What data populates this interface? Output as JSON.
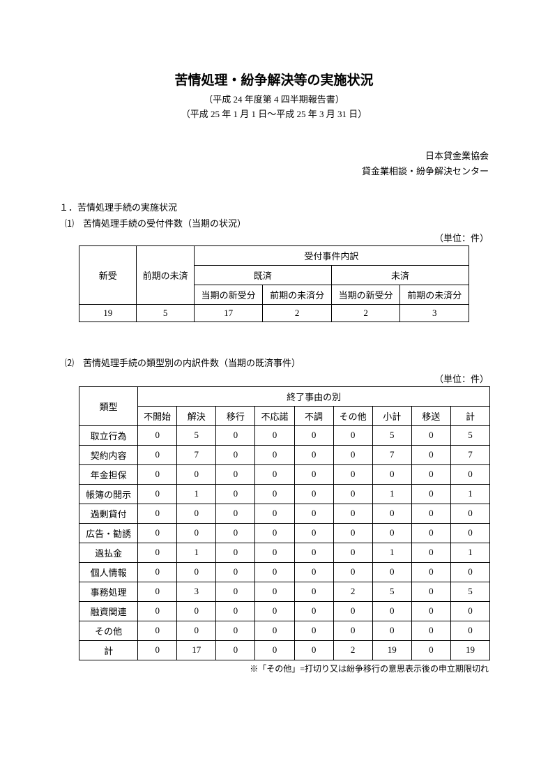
{
  "title": "苦情処理・紛争解決等の実施状況",
  "subtitle1": "（平成 24 年度第 4 四半期報告書）",
  "subtitle2": "（平成 25 年 1 月 1 日～平成 25 年 3 月 31 日）",
  "org1": "日本貸金業協会",
  "org2": "貸金業相談・紛争解決センター",
  "section1": "１．苦情処理手続の実施状況",
  "sub1": "⑴　苦情処理手続の受付件数（当期の状況）",
  "unit": "（単位：件）",
  "table1": {
    "header_top": "受付事件内訳",
    "h_new": "新受",
    "h_prev": "前期の未済",
    "h_done": "既済",
    "h_undone": "未済",
    "h_done_new": "当期の新受分",
    "h_done_prev": "前期の未済分",
    "h_undone_new": "当期の新受分",
    "h_undone_prev": "前期の未済分",
    "row": [
      "19",
      "5",
      "17",
      "2",
      "2",
      "3"
    ]
  },
  "sub2": "⑵　苦情処理手続の類型別の内訳件数（当期の既済事件）",
  "table2": {
    "h_type": "類型",
    "h_reason": "終了事由の別",
    "cols": [
      "不開始",
      "解決",
      "移行",
      "不応諾",
      "不調",
      "その他",
      "小計",
      "移送",
      "計"
    ],
    "rows": [
      {
        "label": "取立行為",
        "vals": [
          "0",
          "5",
          "0",
          "0",
          "0",
          "0",
          "5",
          "0",
          "5"
        ]
      },
      {
        "label": "契約内容",
        "vals": [
          "0",
          "7",
          "0",
          "0",
          "0",
          "0",
          "7",
          "0",
          "7"
        ]
      },
      {
        "label": "年金担保",
        "vals": [
          "0",
          "0",
          "0",
          "0",
          "0",
          "0",
          "0",
          "0",
          "0"
        ]
      },
      {
        "label": "帳簿の開示",
        "vals": [
          "0",
          "1",
          "0",
          "0",
          "0",
          "0",
          "1",
          "0",
          "1"
        ]
      },
      {
        "label": "過剰貸付",
        "vals": [
          "0",
          "0",
          "0",
          "0",
          "0",
          "0",
          "0",
          "0",
          "0"
        ]
      },
      {
        "label": "広告・勧誘",
        "vals": [
          "0",
          "0",
          "0",
          "0",
          "0",
          "0",
          "0",
          "0",
          "0"
        ]
      },
      {
        "label": "過払金",
        "vals": [
          "0",
          "1",
          "0",
          "0",
          "0",
          "0",
          "1",
          "0",
          "1"
        ]
      },
      {
        "label": "個人情報",
        "vals": [
          "0",
          "0",
          "0",
          "0",
          "0",
          "0",
          "0",
          "0",
          "0"
        ]
      },
      {
        "label": "事務処理",
        "vals": [
          "0",
          "3",
          "0",
          "0",
          "0",
          "2",
          "5",
          "0",
          "5"
        ]
      },
      {
        "label": "融資関連",
        "vals": [
          "0",
          "0",
          "0",
          "0",
          "0",
          "0",
          "0",
          "0",
          "0"
        ]
      },
      {
        "label": "その他",
        "vals": [
          "0",
          "0",
          "0",
          "0",
          "0",
          "0",
          "0",
          "0",
          "0"
        ]
      },
      {
        "label": "計",
        "vals": [
          "0",
          "17",
          "0",
          "0",
          "0",
          "2",
          "19",
          "0",
          "19"
        ]
      }
    ]
  },
  "footnote": "※「その他」=打切り又は紛争移行の意思表示後の申立期限切れ"
}
